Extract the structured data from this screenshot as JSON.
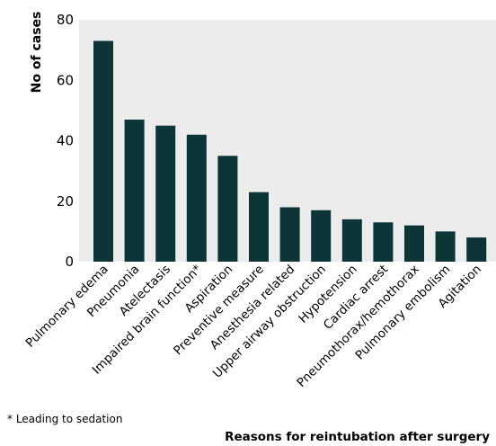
{
  "chart_data": {
    "type": "bar",
    "categories": [
      "Pulmonary edema",
      "Pneumonia",
      "Atelectasis",
      "Impaired brain function*",
      "Aspiration",
      "Preventive measure",
      "Anesthesia related",
      "Upper airway obstruction",
      "Hypotension",
      "Cardiac arrest",
      "Pneumothorax/hemothorax",
      "Pulmonary embolism",
      "Agitation"
    ],
    "values": [
      73,
      47,
      45,
      42,
      35,
      23,
      18,
      17,
      14,
      13,
      12,
      10,
      8
    ],
    "ylabel": "No of cases",
    "xlabel": "Reasons for reintubation after surgery",
    "ylim": [
      0,
      80
    ],
    "yticks": [
      0,
      20,
      40,
      60,
      80
    ],
    "grid": false,
    "colors": {
      "bar": "#0b3536",
      "plot_background": "#ececec"
    }
  },
  "footnote": "* Leading to sedation"
}
